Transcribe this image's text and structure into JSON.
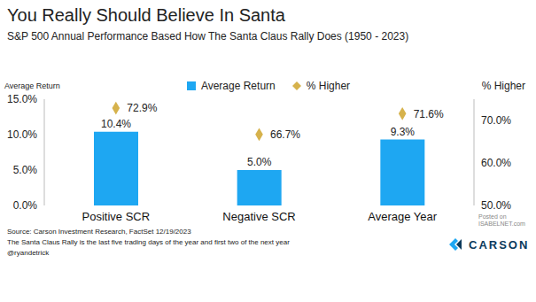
{
  "chart_data": {
    "type": "bar",
    "title": "You Really Should Believe In Santa",
    "subtitle": "S&P 500 Annual Performance Based How The Santa Claus Rally Does (1950 - 2023)",
    "y_label": "Average Return",
    "y2_label": "% Higher",
    "categories": [
      "Positive SCR",
      "Negative SCR",
      "Average Year"
    ],
    "series": [
      {
        "name": "Average Return",
        "type": "bar",
        "color": "#1ea7f2",
        "values": [
          10.4,
          5.0,
          9.3
        ],
        "value_labels": [
          "10.4%",
          "5.0%",
          "9.3%"
        ]
      },
      {
        "name": "% Higher",
        "type": "scatter",
        "axis": "y2",
        "marker": "diamond",
        "color": "#d6b24c",
        "values": [
          72.9,
          66.7,
          71.6
        ],
        "value_labels": [
          "72.9%",
          "66.7%",
          "71.6%"
        ]
      }
    ],
    "ylim": [
      0,
      15
    ],
    "yticks": [
      {
        "value": 0,
        "label": "0.0%"
      },
      {
        "value": 5,
        "label": "5.0%"
      },
      {
        "value": 10,
        "label": "10.0%"
      },
      {
        "value": 15,
        "label": "15.0%"
      }
    ],
    "y2lim": [
      50,
      75
    ],
    "y2ticks": [
      {
        "value": 50,
        "label": "50.0%"
      },
      {
        "value": 60,
        "label": "60.0%"
      },
      {
        "value": 70,
        "label": "70.0%"
      }
    ],
    "grid": false,
    "data_labels": true,
    "legend": "top",
    "footnotes": [
      "Source: Carson Investment Research, FactSet 12/19/2023",
      "The Santa Claus Rally is the last five trading days of the year and first two of the next year",
      "@ryandetrick"
    ],
    "watermark": [
      "Posted on",
      "ISABELNET.com"
    ],
    "logo": "CARSON"
  }
}
